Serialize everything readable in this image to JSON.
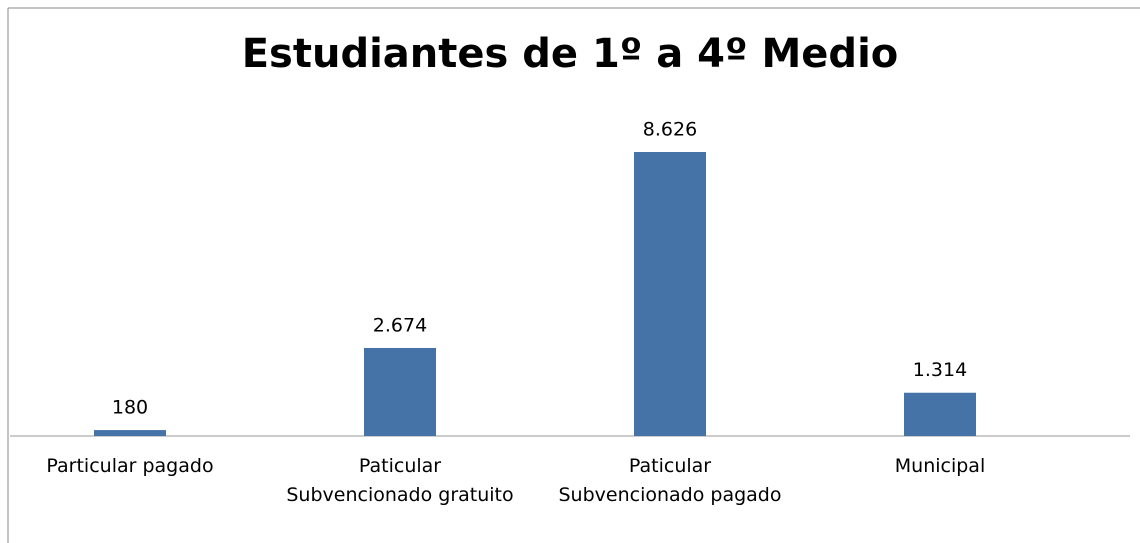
{
  "chart_data": {
    "type": "bar",
    "title": "Estudiantes de 1º a 4º Medio",
    "categories": [
      "Particular pagado",
      "Paticular Subvencionado gratuito",
      "Paticular Subvencionado pagado",
      "Municipal"
    ],
    "values": [
      180,
      2674,
      8626,
      1314
    ],
    "value_labels": [
      "180",
      "2.674",
      "8.626",
      "1.314"
    ],
    "color": "#4572a7"
  }
}
